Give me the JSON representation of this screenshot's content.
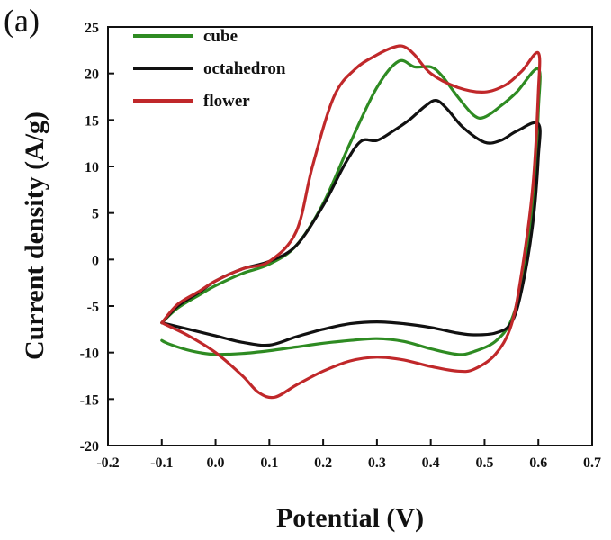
{
  "panel_label": "(a)",
  "chart_data": {
    "type": "line",
    "xlabel": "Potential (V)",
    "ylabel": "Current density (A/g)",
    "xlim": [
      -0.2,
      0.7
    ],
    "ylim": [
      -20,
      25
    ],
    "x_ticks": [
      -0.2,
      -0.1,
      0.0,
      0.1,
      0.2,
      0.3,
      0.4,
      0.5,
      0.6,
      0.7
    ],
    "x_tick_labels": [
      "-0.2",
      "-0.1",
      "0.0",
      "0.1",
      "0.2",
      "0.3",
      "0.4",
      "0.5",
      "0.6",
      "0.7"
    ],
    "y_ticks": [
      -20,
      -15,
      -10,
      -5,
      0,
      5,
      10,
      15,
      20,
      25
    ],
    "y_tick_labels": [
      "-20",
      "-15",
      "-10",
      "-5",
      "0",
      "5",
      "10",
      "15",
      "20",
      "25"
    ],
    "legend_position": "top-left",
    "series": [
      {
        "name": "cube",
        "color": "#2e8b22",
        "x": [
          -0.1,
          -0.07,
          -0.03,
          0.0,
          0.05,
          0.1,
          0.15,
          0.2,
          0.25,
          0.3,
          0.34,
          0.37,
          0.4,
          0.42,
          0.45,
          0.48,
          0.5,
          0.53,
          0.56,
          0.6,
          0.6,
          0.59,
          0.57,
          0.55,
          0.52,
          0.48,
          0.45,
          0.4,
          0.35,
          0.3,
          0.25,
          0.2,
          0.15,
          0.1,
          0.05,
          0.0,
          -0.03,
          -0.06,
          -0.09,
          -0.1
        ],
        "y": [
          -6.8,
          -5.2,
          -3.8,
          -2.8,
          -1.5,
          -0.5,
          1.5,
          6.0,
          12.5,
          18.5,
          21.3,
          20.7,
          20.7,
          19.8,
          17.5,
          15.5,
          15.3,
          16.5,
          18.0,
          20.5,
          16.0,
          6.0,
          -2.0,
          -6.5,
          -8.8,
          -9.9,
          -10.2,
          -9.6,
          -8.8,
          -8.5,
          -8.7,
          -9.0,
          -9.4,
          -9.8,
          -10.1,
          -10.2,
          -10.0,
          -9.6,
          -9.0,
          -8.7
        ]
      },
      {
        "name": "octahedron",
        "color": "#111111",
        "x": [
          -0.1,
          -0.07,
          -0.03,
          0.0,
          0.05,
          0.1,
          0.15,
          0.2,
          0.24,
          0.27,
          0.3,
          0.33,
          0.36,
          0.39,
          0.41,
          0.43,
          0.46,
          0.5,
          0.53,
          0.56,
          0.6,
          0.6,
          0.59,
          0.57,
          0.55,
          0.52,
          0.48,
          0.45,
          0.4,
          0.35,
          0.3,
          0.25,
          0.2,
          0.15,
          0.1,
          0.05,
          0.0,
          -0.05,
          -0.1
        ],
        "y": [
          -6.8,
          -5.0,
          -3.5,
          -2.3,
          -1.0,
          -0.2,
          1.5,
          5.8,
          10.2,
          12.7,
          12.8,
          13.8,
          15.0,
          16.5,
          17.1,
          16.2,
          14.2,
          12.6,
          12.8,
          13.8,
          14.6,
          11.0,
          4.0,
          -3.0,
          -6.8,
          -7.9,
          -8.1,
          -7.9,
          -7.3,
          -6.9,
          -6.7,
          -6.9,
          -7.5,
          -8.3,
          -9.2,
          -8.9,
          -8.2,
          -7.5,
          -6.8
        ]
      },
      {
        "name": "flower",
        "color": "#c0282a",
        "x": [
          -0.1,
          -0.07,
          -0.03,
          0.0,
          0.05,
          0.1,
          0.15,
          0.18,
          0.22,
          0.26,
          0.3,
          0.33,
          0.35,
          0.37,
          0.4,
          0.45,
          0.5,
          0.54,
          0.57,
          0.6,
          0.6,
          0.59,
          0.57,
          0.55,
          0.52,
          0.48,
          0.45,
          0.4,
          0.35,
          0.3,
          0.25,
          0.2,
          0.15,
          0.11,
          0.08,
          0.05,
          0.0,
          -0.05,
          -0.1
        ],
        "y": [
          -6.8,
          -4.8,
          -3.4,
          -2.3,
          -1.0,
          -0.2,
          3.0,
          10.0,
          17.5,
          20.5,
          22.0,
          22.8,
          22.9,
          22.0,
          20.0,
          18.5,
          18.0,
          18.8,
          20.3,
          22.2,
          18.0,
          8.0,
          -1.0,
          -7.0,
          -10.2,
          -11.8,
          -12.0,
          -11.5,
          -10.8,
          -10.5,
          -10.9,
          -12.0,
          -13.5,
          -14.8,
          -14.3,
          -12.5,
          -10.0,
          -8.2,
          -6.8
        ]
      }
    ]
  }
}
